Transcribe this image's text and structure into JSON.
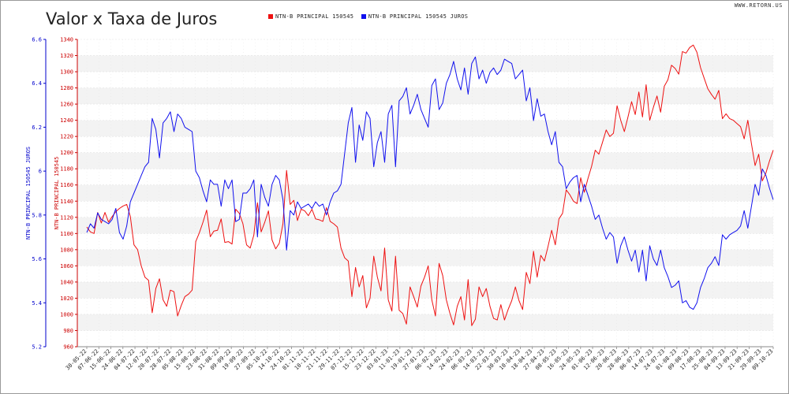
{
  "chart_data": {
    "type": "line",
    "title": "Valor x Taxa de Juros",
    "source_label": "WWW.RETORN.US",
    "legend_placement": "top",
    "grid": true,
    "y_left": {
      "label": "NTN-B PRINCIPAL 150545 JUROS",
      "lim": [
        5.2,
        6.6
      ],
      "ticks": [
        "5.2",
        "5.4",
        "5.6",
        "5.8",
        "6",
        "6.2",
        "6.4",
        "6.6"
      ],
      "color": "#0000cc"
    },
    "y_right": {
      "label": "NTN-B PRINCIPAL 150545",
      "lim": [
        960,
        1340
      ],
      "ticks": [
        "960",
        "980",
        "1000",
        "1020",
        "1040",
        "1060",
        "1080",
        "1100",
        "1120",
        "1140",
        "1160",
        "1180",
        "1200",
        "1220",
        "1240",
        "1260",
        "1280",
        "1300",
        "1320",
        "1340"
      ],
      "color": "#cc0000"
    },
    "x_ticks": [
      "30-05-22",
      "07-06-22",
      "15-06-22",
      "24-06-22",
      "04-07-22",
      "12-07-22",
      "20-07-22",
      "28-07-22",
      "05-08-22",
      "15-08-22",
      "23-08-22",
      "31-08-22",
      "09-09-22",
      "19-09-22",
      "27-09-22",
      "05-10-22",
      "14-10-22",
      "24-10-22",
      "01-11-22",
      "10-11-22",
      "21-11-22",
      "29-11-22",
      "07-12-22",
      "15-12-22",
      "23-12-22",
      "03-01-23",
      "11-01-23",
      "19-01-23",
      "27-01-23",
      "06-02-23",
      "14-02-23",
      "24-02-23",
      "06-03-23",
      "14-03-23",
      "22-03-23",
      "30-03-23",
      "10-04-23",
      "18-04-23",
      "27-04-23",
      "08-05-23",
      "16-05-23",
      "24-05-23",
      "01-06-23",
      "12-06-23",
      "20-06-23",
      "28-06-23",
      "06-07-23",
      "14-07-23",
      "24-07-23",
      "01-08-23",
      "09-08-23",
      "17-08-23",
      "25-08-23",
      "04-09-23",
      "13-09-23",
      "21-09-23",
      "29-09-23",
      "09-10-23"
    ],
    "series": [
      {
        "name": "NTN-B PRINCIPAL 150545",
        "axis": "right",
        "color": "#ee1111",
        "values": [
          1108,
          1102,
          1100,
          1126,
          1113,
          1126,
          1114,
          1121,
          1127,
          1131,
          1134,
          1136,
          1121,
          1086,
          1080,
          1060,
          1046,
          1042,
          1002,
          1032,
          1044,
          1018,
          1010,
          1030,
          1028,
          998,
          1011,
          1022,
          1025,
          1030,
          1090,
          1101,
          1114,
          1129,
          1096,
          1103,
          1104,
          1118,
          1089,
          1090,
          1087,
          1130,
          1125,
          1112,
          1086,
          1082,
          1098,
          1138,
          1102,
          1114,
          1128,
          1092,
          1081,
          1088,
          1112,
          1178,
          1136,
          1141,
          1116,
          1130,
          1128,
          1122,
          1130,
          1118,
          1117,
          1115,
          1132,
          1115,
          1112,
          1108,
          1082,
          1070,
          1066,
          1022,
          1058,
          1034,
          1048,
          1008,
          1020,
          1072,
          1046,
          1029,
          1082,
          1018,
          1004,
          1072,
          1005,
          1001,
          988,
          1034,
          1022,
          1009,
          1035,
          1046,
          1060,
          1018,
          998,
          1063,
          1048,
          1018,
          1001,
          987,
          1010,
          1022,
          993,
          1043,
          986,
          994,
          1034,
          1022,
          1032,
          1010,
          995,
          993,
          1012,
          993,
          1006,
          1017,
          1034,
          1017,
          1006,
          1052,
          1038,
          1078,
          1046,
          1073,
          1066,
          1084,
          1104,
          1086,
          1118,
          1125,
          1154,
          1148,
          1140,
          1137,
          1169,
          1151,
          1168,
          1183,
          1203,
          1198,
          1213,
          1228,
          1220,
          1224,
          1258,
          1240,
          1226,
          1244,
          1263,
          1247,
          1275,
          1244,
          1284,
          1240,
          1256,
          1270,
          1250,
          1282,
          1290,
          1308,
          1304,
          1297,
          1325,
          1323,
          1330,
          1333,
          1324,
          1305,
          1292,
          1279,
          1272,
          1266,
          1277,
          1242,
          1248,
          1242,
          1240,
          1236,
          1232,
          1217,
          1240,
          1211,
          1184,
          1198,
          1165,
          1175,
          1190,
          1203
        ]
      },
      {
        "name": "NTN-B PRINCIPAL 150545 JUROS",
        "axis": "left",
        "color": "#1111ee",
        "values": [
          5.72,
          5.76,
          5.74,
          5.81,
          5.78,
          5.77,
          5.76,
          5.78,
          5.83,
          5.72,
          5.69,
          5.75,
          5.86,
          5.9,
          5.94,
          5.98,
          6.02,
          6.04,
          6.24,
          6.19,
          6.06,
          6.22,
          6.24,
          6.27,
          6.18,
          6.26,
          6.24,
          6.2,
          6.19,
          6.18,
          6.0,
          5.97,
          5.91,
          5.86,
          5.96,
          5.94,
          5.94,
          5.84,
          5.96,
          5.92,
          5.96,
          5.77,
          5.78,
          5.9,
          5.9,
          5.92,
          5.96,
          5.7,
          5.94,
          5.88,
          5.84,
          5.94,
          5.98,
          5.96,
          5.87,
          5.64,
          5.82,
          5.8,
          5.86,
          5.83,
          5.84,
          5.85,
          5.83,
          5.86,
          5.84,
          5.85,
          5.8,
          5.86,
          5.9,
          5.91,
          5.94,
          6.08,
          6.22,
          6.29,
          6.04,
          6.21,
          6.14,
          6.27,
          6.24,
          6.02,
          6.13,
          6.18,
          6.04,
          6.26,
          6.3,
          6.02,
          6.32,
          6.34,
          6.38,
          6.26,
          6.3,
          6.35,
          6.28,
          6.24,
          6.2,
          6.39,
          6.42,
          6.28,
          6.31,
          6.4,
          6.44,
          6.5,
          6.42,
          6.37,
          6.47,
          6.35,
          6.49,
          6.52,
          6.42,
          6.46,
          6.4,
          6.45,
          6.47,
          6.44,
          6.46,
          6.51,
          6.5,
          6.49,
          6.42,
          6.44,
          6.46,
          6.32,
          6.38,
          6.23,
          6.33,
          6.25,
          6.26,
          6.18,
          6.12,
          6.18,
          6.04,
          6.02,
          5.92,
          5.95,
          5.97,
          5.98,
          5.86,
          5.94,
          5.89,
          5.84,
          5.78,
          5.8,
          5.74,
          5.69,
          5.72,
          5.7,
          5.58,
          5.66,
          5.7,
          5.64,
          5.59,
          5.64,
          5.54,
          5.64,
          5.5,
          5.66,
          5.6,
          5.57,
          5.64,
          5.56,
          5.52,
          5.47,
          5.48,
          5.5,
          5.4,
          5.41,
          5.38,
          5.37,
          5.4,
          5.47,
          5.51,
          5.56,
          5.58,
          5.61,
          5.57,
          5.71,
          5.69,
          5.71,
          5.72,
          5.73,
          5.75,
          5.82,
          5.74,
          5.84,
          5.94,
          5.89,
          6.01,
          5.98,
          5.92,
          5.87
        ]
      }
    ]
  }
}
